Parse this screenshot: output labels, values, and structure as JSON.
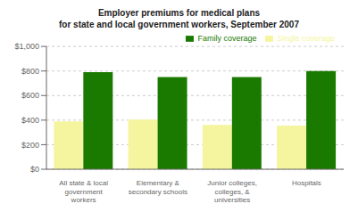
{
  "chart_data": {
    "type": "bar",
    "title": "Employer premiums for medical plans\nfor state and local government workers, September 2007",
    "categories": [
      "All state & local\ngovernment\nworkers",
      "Elementary &\nsecondary schools",
      "Junior colleges,\ncolleges, &\nuniversities",
      "Hospitals"
    ],
    "series": [
      {
        "name": "Single coverage",
        "color": "#f5f5a0",
        "values": [
          390,
          405,
          360,
          355
        ]
      },
      {
        "name": "Family coverage",
        "color": "#1a7a00",
        "values": [
          790,
          750,
          750,
          800
        ]
      }
    ],
    "ylim": [
      0,
      1000
    ],
    "yticks": [
      {
        "value": 0,
        "label": "$0"
      },
      {
        "value": 200,
        "label": "$200"
      },
      {
        "value": 400,
        "label": "$400"
      },
      {
        "value": 600,
        "label": "$600"
      },
      {
        "value": 800,
        "label": "$800"
      },
      {
        "value": 1000,
        "label": "$1,000"
      }
    ],
    "grid": true,
    "legend": "upper right"
  }
}
